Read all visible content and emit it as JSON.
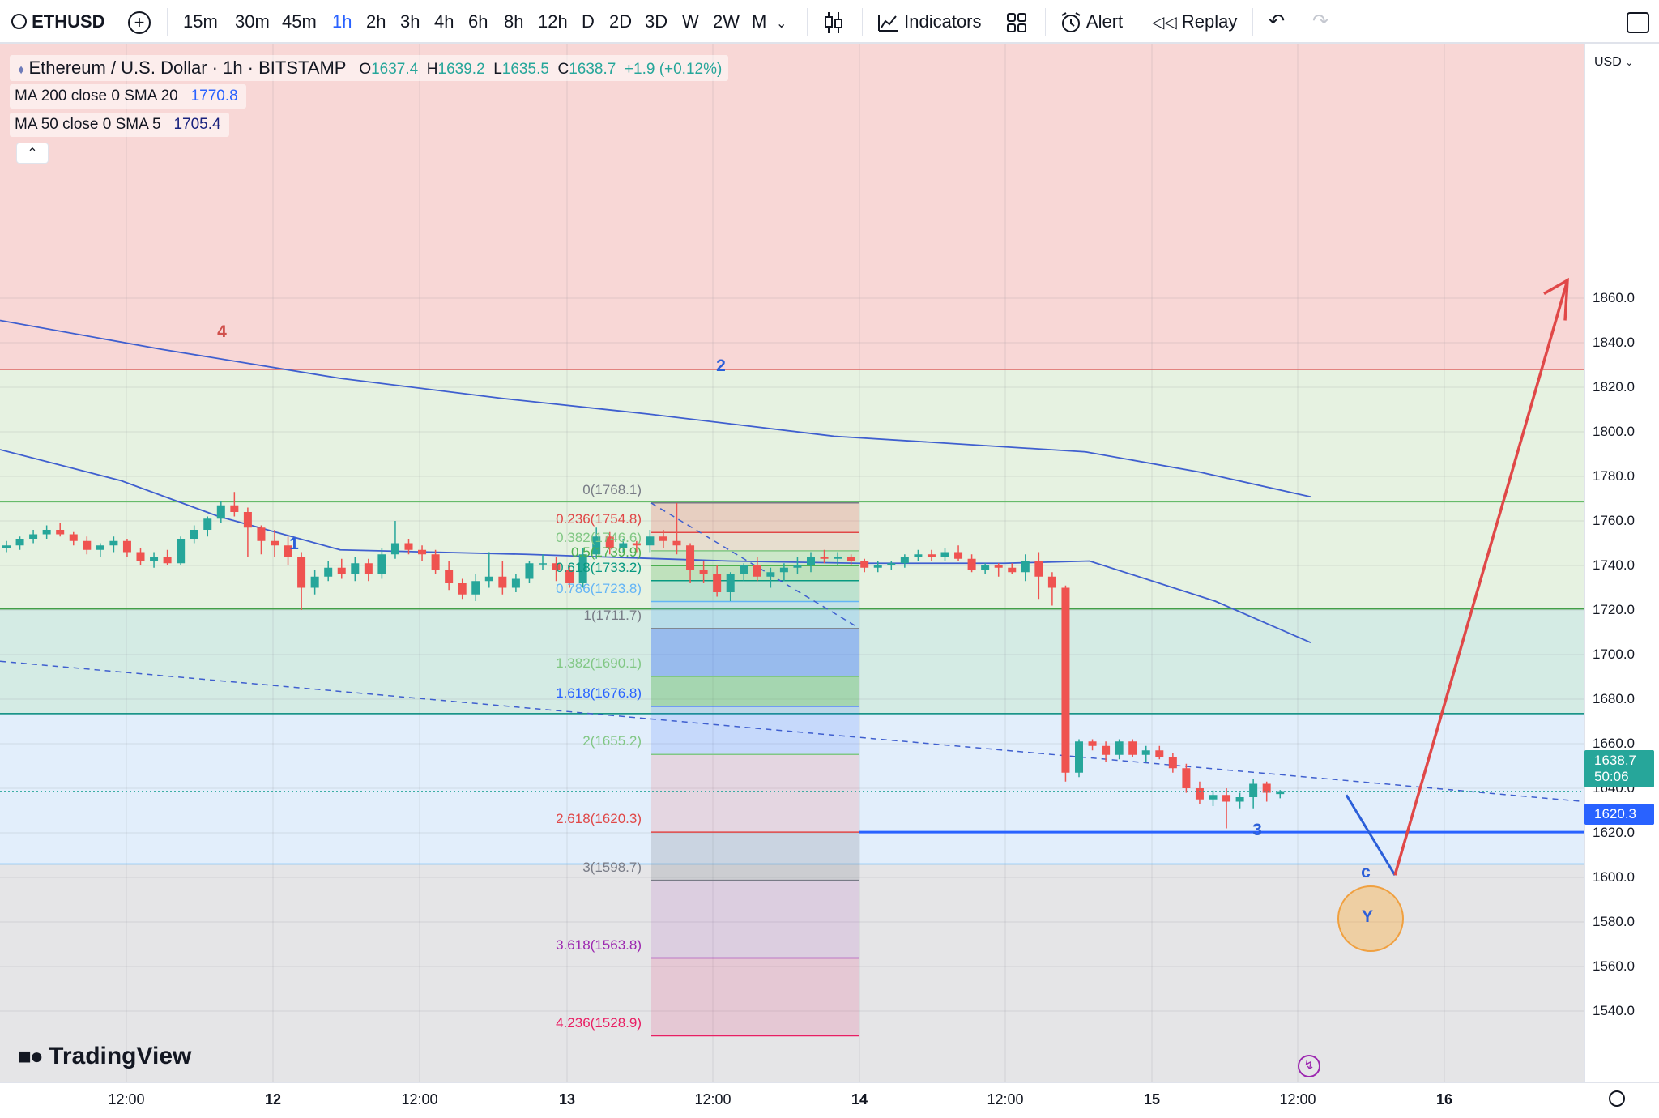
{
  "toolbar": {
    "symbol": "ETHUSD",
    "intervals": [
      "15m",
      "30m",
      "45m",
      "1h",
      "2h",
      "3h",
      "4h",
      "6h",
      "8h",
      "12h",
      "D",
      "2D",
      "3D",
      "W",
      "2W",
      "M"
    ],
    "active_interval": "1h",
    "indicators_label": "Indicators",
    "alert_label": "Alert",
    "replay_label": "Replay"
  },
  "legend": {
    "title": "Ethereum / U.S. Dollar · 1h · BITSTAMP",
    "o_label": "O",
    "o_value": "1637.4",
    "h_label": "H",
    "h_value": "1639.2",
    "l_label": "L",
    "l_value": "1635.5",
    "c_label": "C",
    "c_value": "1638.7",
    "change": "+1.9 (+0.12%)",
    "ma1_label": "MA 200 close 0 SMA 20",
    "ma1_value": "1770.8",
    "ma2_label": "MA 50 close 0 SMA 5",
    "ma2_value": "1705.4"
  },
  "currency": "USD",
  "branding": "TradingView",
  "colors": {
    "up": "#26a69a",
    "down": "#ef5350",
    "ma": "#3f5fcf",
    "wave_blue": "#2b5fd9",
    "wave_red": "#d0504c",
    "projection": "#e04848"
  },
  "chart_data": {
    "type": "candlestick",
    "price_axis": [
      "1860.0",
      "1840.0",
      "1820.0",
      "1800.0",
      "1780.0",
      "1760.0",
      "1740.0",
      "1720.0",
      "1700.0",
      "1680.0",
      "1660.0",
      "1640.0",
      "1620.0",
      "1600.0",
      "1580.0",
      "1560.0",
      "1540.0"
    ],
    "time_axis": [
      "12:00",
      "12",
      "12:00",
      "13",
      "12:00",
      "14",
      "12:00",
      "15",
      "12:00",
      "16"
    ],
    "last_price": "1638.7",
    "countdown": "50:06",
    "level_price": "1620.3",
    "fib_levels": [
      {
        "label": "0(1768.1)",
        "price": 1768.1,
        "color": "#787b86"
      },
      {
        "label": "0.236(1754.8)",
        "price": 1754.8,
        "color": "#e04848"
      },
      {
        "label": "0.382(1746.6)",
        "price": 1746.6,
        "color": "#81c784"
      },
      {
        "label": "0.5(1739.9)",
        "price": 1739.9,
        "color": "#4caf50"
      },
      {
        "label": "0.618(1733.2)",
        "price": 1733.2,
        "color": "#089981"
      },
      {
        "label": "0.786(1723.8)",
        "price": 1723.8,
        "color": "#64b5f6"
      },
      {
        "label": "1(1711.7)",
        "price": 1711.7,
        "color": "#787b86"
      },
      {
        "label": "1.382(1690.1)",
        "price": 1690.1,
        "color": "#81c784"
      },
      {
        "label": "1.618(1676.8)",
        "price": 1676.8,
        "color": "#2962ff"
      },
      {
        "label": "2(1655.2)",
        "price": 1655.2,
        "color": "#81c784"
      },
      {
        "label": "2.618(1620.3)",
        "price": 1620.3,
        "color": "#e04848"
      },
      {
        "label": "3(1598.7)",
        "price": 1598.7,
        "color": "#787b86"
      },
      {
        "label": "3.618(1563.8)",
        "price": 1563.8,
        "color": "#9c27b0"
      },
      {
        "label": "4.236(1528.9)",
        "price": 1528.9,
        "color": "#e91e63"
      }
    ],
    "waves": [
      {
        "label": "4",
        "color": "red"
      },
      {
        "label": "1",
        "color": "blue"
      },
      {
        "label": "2",
        "color": "blue"
      },
      {
        "label": "3",
        "color": "blue"
      },
      {
        "label": "c",
        "color": "blue"
      },
      {
        "label": "Y",
        "color": "blue"
      }
    ],
    "candles": [
      [
        1748,
        1751,
        1746,
        1749
      ],
      [
        1749,
        1753,
        1747,
        1752
      ],
      [
        1752,
        1756,
        1750,
        1754
      ],
      [
        1754,
        1758,
        1752,
        1756
      ],
      [
        1756,
        1759,
        1753,
        1754
      ],
      [
        1754,
        1755,
        1749,
        1751
      ],
      [
        1751,
        1753,
        1745,
        1747
      ],
      [
        1747,
        1750,
        1744,
        1749
      ],
      [
        1749,
        1753,
        1746,
        1751
      ],
      [
        1751,
        1752,
        1744,
        1746
      ],
      [
        1746,
        1748,
        1740,
        1742
      ],
      [
        1742,
        1746,
        1739,
        1744
      ],
      [
        1744,
        1747,
        1740,
        1741
      ],
      [
        1741,
        1753,
        1740,
        1752
      ],
      [
        1752,
        1758,
        1750,
        1756
      ],
      [
        1756,
        1762,
        1753,
        1761
      ],
      [
        1761,
        1769,
        1759,
        1767
      ],
      [
        1767,
        1773,
        1762,
        1764
      ],
      [
        1764,
        1766,
        1744,
        1757
      ],
      [
        1757,
        1758,
        1745,
        1751
      ],
      [
        1751,
        1756,
        1744,
        1749
      ],
      [
        1749,
        1753,
        1740,
        1744
      ],
      [
        1744,
        1746,
        1720,
        1730
      ],
      [
        1730,
        1738,
        1727,
        1735
      ],
      [
        1735,
        1742,
        1733,
        1739
      ],
      [
        1739,
        1743,
        1734,
        1736
      ],
      [
        1736,
        1744,
        1733,
        1741
      ],
      [
        1741,
        1743,
        1733,
        1736
      ],
      [
        1736,
        1748,
        1734,
        1745
      ],
      [
        1745,
        1760,
        1743,
        1750
      ],
      [
        1750,
        1752,
        1745,
        1747
      ],
      [
        1747,
        1749,
        1742,
        1745
      ],
      [
        1745,
        1747,
        1736,
        1738
      ],
      [
        1738,
        1742,
        1729,
        1732
      ],
      [
        1732,
        1734,
        1725,
        1727
      ],
      [
        1727,
        1736,
        1724,
        1733
      ],
      [
        1733,
        1746,
        1730,
        1735
      ],
      [
        1735,
        1742,
        1727,
        1730
      ],
      [
        1730,
        1736,
        1728,
        1734
      ],
      [
        1734,
        1742,
        1732,
        1741
      ],
      [
        1741,
        1745,
        1738,
        1741
      ],
      [
        1741,
        1744,
        1733,
        1738
      ],
      [
        1738,
        1740,
        1730,
        1732
      ],
      [
        1732,
        1748,
        1730,
        1745
      ],
      [
        1745,
        1757,
        1743,
        1753
      ],
      [
        1753,
        1755,
        1745,
        1748
      ],
      [
        1748,
        1752,
        1746,
        1750
      ],
      [
        1750,
        1751,
        1746,
        1749
      ],
      [
        1749,
        1756,
        1746,
        1753
      ],
      [
        1753,
        1756,
        1748,
        1751
      ],
      [
        1751,
        1768,
        1745,
        1749
      ],
      [
        1749,
        1750,
        1732,
        1738
      ],
      [
        1738,
        1742,
        1732,
        1736
      ],
      [
        1736,
        1740,
        1726,
        1728
      ],
      [
        1728,
        1737,
        1724,
        1736
      ],
      [
        1736,
        1741,
        1733,
        1740
      ],
      [
        1740,
        1744,
        1733,
        1735
      ],
      [
        1735,
        1739,
        1730,
        1737
      ],
      [
        1737,
        1741,
        1733,
        1739
      ],
      [
        1739,
        1744,
        1736,
        1740
      ],
      [
        1740,
        1746,
        1737,
        1744
      ],
      [
        1744,
        1747,
        1741,
        1743
      ],
      [
        1743,
        1746,
        1740,
        1744
      ],
      [
        1744,
        1745,
        1740,
        1742
      ],
      [
        1742,
        1743,
        1737,
        1739
      ],
      [
        1739,
        1742,
        1737,
        1740
      ],
      [
        1740,
        1742,
        1738,
        1741
      ],
      [
        1741,
        1745,
        1739,
        1744
      ],
      [
        1744,
        1747,
        1742,
        1745
      ],
      [
        1745,
        1747,
        1742,
        1744
      ],
      [
        1744,
        1748,
        1742,
        1746
      ],
      [
        1746,
        1749,
        1742,
        1743
      ],
      [
        1743,
        1745,
        1737,
        1738
      ],
      [
        1738,
        1741,
        1736,
        1740
      ],
      [
        1740,
        1741,
        1735,
        1739
      ],
      [
        1739,
        1741,
        1736,
        1737
      ],
      [
        1737,
        1745,
        1733,
        1742
      ],
      [
        1742,
        1746,
        1725,
        1735
      ],
      [
        1735,
        1737,
        1722,
        1730
      ],
      [
        1730,
        1731,
        1643,
        1647
      ],
      [
        1647,
        1662,
        1645,
        1661
      ],
      [
        1661,
        1662,
        1657,
        1659
      ],
      [
        1659,
        1661,
        1652,
        1655
      ],
      [
        1655,
        1662,
        1653,
        1661
      ],
      [
        1661,
        1662,
        1654,
        1655
      ],
      [
        1655,
        1659,
        1652,
        1657
      ],
      [
        1657,
        1659,
        1653,
        1654
      ],
      [
        1654,
        1656,
        1647,
        1649
      ],
      [
        1649,
        1651,
        1638,
        1640
      ],
      [
        1640,
        1643,
        1633,
        1635
      ],
      [
        1635,
        1639,
        1632,
        1637
      ],
      [
        1637,
        1640,
        1622,
        1634
      ],
      [
        1634,
        1638,
        1631,
        1636
      ],
      [
        1636,
        1644,
        1631,
        1642
      ],
      [
        1642,
        1643,
        1634,
        1638
      ],
      [
        1637.4,
        1639.2,
        1635.5,
        1638.7
      ]
    ]
  }
}
